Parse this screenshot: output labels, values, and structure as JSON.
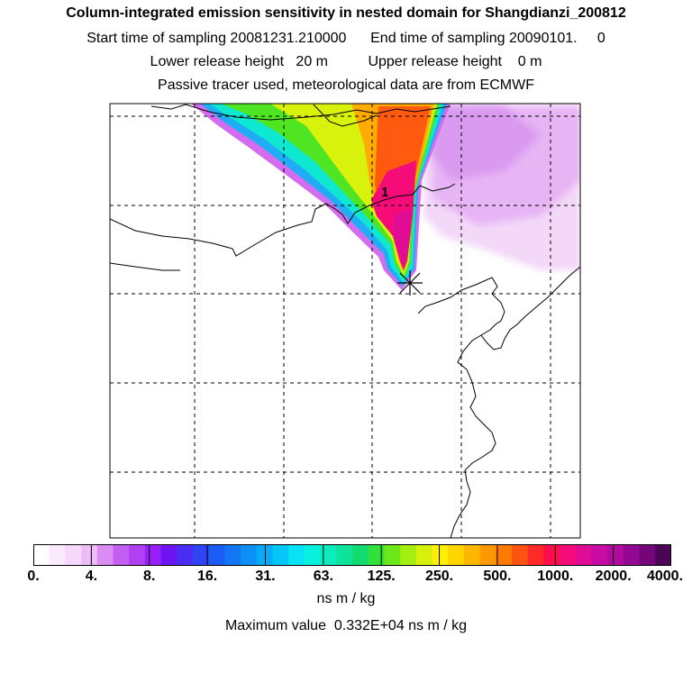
{
  "header": {
    "title": "Column-integrated emission sensitivity in nested domain for Shangdianzi_200812",
    "sampling_line": "Start time of sampling 20081231.210000      End time of sampling 20090101.     0",
    "release_line": "Lower release height   20 m          Upper release height    0 m",
    "tracer_line": "Passive tracer used, meteorological data are from ECMWF"
  },
  "map": {
    "max_location_label": "1",
    "receptor_marker": "star-marker"
  },
  "colorbar": {
    "tick_labels": [
      "0.",
      "4.",
      "8.",
      "16.",
      "31.",
      "63.",
      "125.",
      "250.",
      "500.",
      "1000.",
      "2000.",
      "4000."
    ],
    "colors": [
      "#ffffff",
      "#fbeaff",
      "#f5d8fb",
      "#eebdf7",
      "#d98cf2",
      "#c45ef0",
      "#b13ff3",
      "#9a20f8",
      "#6d14f5",
      "#4b2cf5",
      "#2f44f5",
      "#1b5cf6",
      "#1276f5",
      "#0c90f6",
      "#08abf7",
      "#06c6f8",
      "#08e2f5",
      "#0af0de",
      "#0aecbd",
      "#0ee39a",
      "#12da70",
      "#2ee23a",
      "#6ae81a",
      "#a2ef10",
      "#d6f10c",
      "#ffef08",
      "#ffd400",
      "#ffb600",
      "#ff9800",
      "#ff7a00",
      "#ff5410",
      "#ff2a28",
      "#ff0e4e",
      "#f50c78",
      "#e00c95",
      "#c80ba3",
      "#b00a9e",
      "#930893",
      "#74067a",
      "#4c0454"
    ],
    "units": "ns m / kg"
  },
  "footer": {
    "max_value": "Maximum value  0.332E+04 ns m / kg"
  }
}
